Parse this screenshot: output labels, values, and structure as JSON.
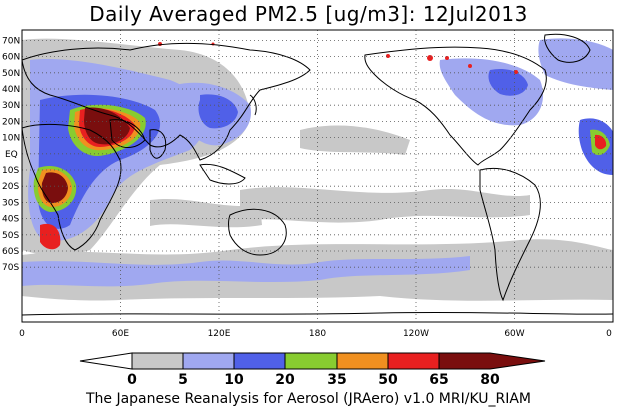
{
  "title": "Daily Averaged PM2.5 [ug/m3]: 12Jul2013",
  "caption": "The Japanese Reanalysis for Aerosol (JRAero) v1.0 MRI/KU_RIAM",
  "map": {
    "lat_labels": [
      "70N",
      "60N",
      "50N",
      "40N",
      "30N",
      "20N",
      "10N",
      "EQ",
      "10S",
      "20S",
      "30S",
      "40S",
      "50S",
      "60S",
      "70S"
    ],
    "lon_labels": [
      "0",
      "60E",
      "120E",
      "180",
      "120W",
      "60W",
      "0"
    ],
    "grid": "dotted",
    "projection": "cylindrical-equidistant"
  },
  "colorbar": {
    "levels": [
      "0",
      "5",
      "10",
      "20",
      "35",
      "50",
      "65",
      "80"
    ],
    "colors": [
      "#ffffff",
      "#c8c8c8",
      "#a0a8f0",
      "#5060e8",
      "#88cc30",
      "#f09020",
      "#e82020",
      "#7a0e0e"
    ]
  }
}
